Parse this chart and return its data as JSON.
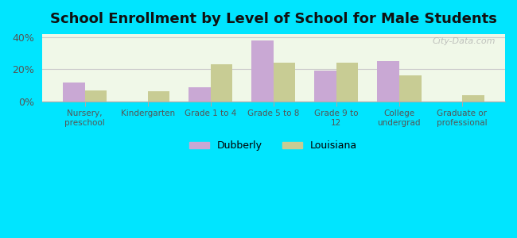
{
  "title": "School Enrollment by Level of School for Male Students",
  "categories": [
    "Nursery,\npreschool",
    "Kindergarten",
    "Grade 1 to 4",
    "Grade 5 to 8",
    "Grade 9 to\n12",
    "College\nundergrad",
    "Graduate or\nprofessional"
  ],
  "dubberly": [
    12,
    0,
    9,
    38,
    19,
    25,
    0
  ],
  "louisiana": [
    7,
    6.5,
    23,
    24,
    24,
    16,
    4
  ],
  "dubberly_color": "#c9a8d4",
  "louisiana_color": "#c8cc94",
  "background_color": "#00e5ff",
  "title_color": "#111111",
  "tick_color": "#555555",
  "ylabel_ticks": [
    "0%",
    "20%",
    "40%"
  ],
  "yticks": [
    0,
    20,
    40
  ],
  "ylim": [
    0,
    42
  ],
  "bar_width": 0.35,
  "watermark": "City-Data.com",
  "legend_labels": [
    "Dubberly",
    "Louisiana"
  ]
}
